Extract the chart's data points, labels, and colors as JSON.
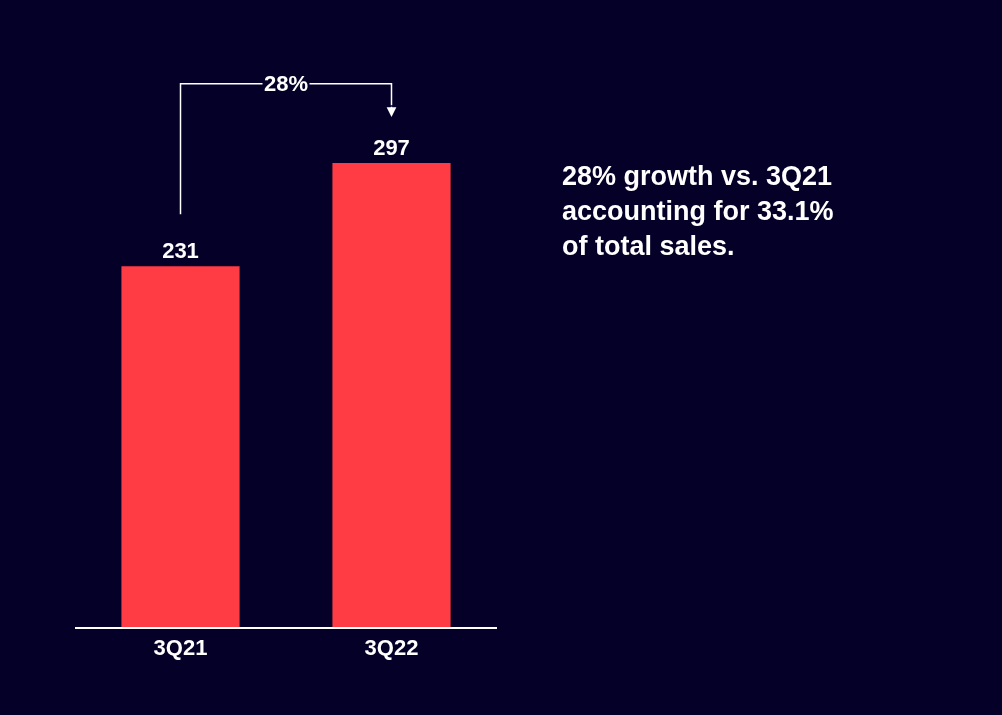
{
  "chart_data": {
    "type": "bar",
    "categories": [
      "3Q21",
      "3Q22"
    ],
    "values": [
      231,
      297
    ],
    "color": "#ff3b44",
    "data_labels": true,
    "tick_labels": "x",
    "grid": false,
    "legend": false,
    "annotations": [
      "28%",
      "28% growth vs. 3Q21 accounting for 33.1% of total sales."
    ]
  }
}
